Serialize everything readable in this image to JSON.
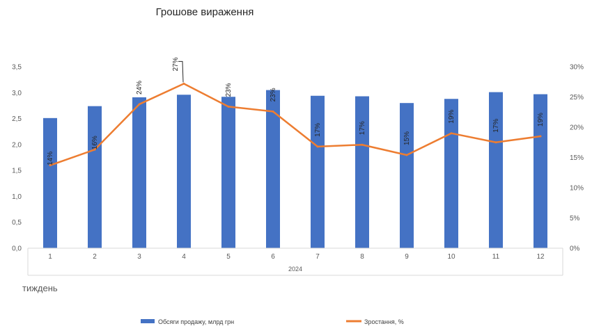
{
  "chart_data": {
    "type": "bar",
    "title": "Грошове вираження",
    "xlabel": "тиждень",
    "x_group_label": "2024",
    "categories": [
      "1",
      "2",
      "3",
      "4",
      "5",
      "6",
      "7",
      "8",
      "9",
      "10",
      "11",
      "12"
    ],
    "series": [
      {
        "name": "Обсяги продажу, млрд грн",
        "type": "bar",
        "axis": "left",
        "color": "#4472C4",
        "values": [
          2.51,
          2.74,
          2.91,
          2.96,
          2.92,
          3.05,
          2.94,
          2.93,
          2.8,
          2.88,
          3.01,
          2.97
        ]
      },
      {
        "name": "Зростання, %",
        "type": "line",
        "axis": "right",
        "color": "#ED7D31",
        "values": [
          14,
          16,
          24,
          27,
          23,
          23,
          17,
          17,
          15,
          19,
          17,
          19
        ],
        "plot_values": [
          13.7,
          16.3,
          23.8,
          27.2,
          23.4,
          22.6,
          16.8,
          17.1,
          15.4,
          19.0,
          17.5,
          18.5
        ],
        "labels": [
          "14%",
          "16%",
          "24%",
          "27%",
          "23%",
          "23%",
          "17%",
          "17%",
          "15%",
          "19%",
          "17%",
          "19%"
        ]
      }
    ],
    "y_left": {
      "ylim": [
        0,
        3.5
      ],
      "ticks": [
        "0,0",
        "0,5",
        "1,0",
        "1,5",
        "2,0",
        "2,5",
        "3,0",
        "3,5"
      ]
    },
    "y_right": {
      "ylim": [
        0,
        30
      ],
      "ticks": [
        "0%",
        "5%",
        "10%",
        "15%",
        "20%",
        "25%",
        "30%"
      ]
    },
    "grid": false,
    "legend": "bottom"
  }
}
